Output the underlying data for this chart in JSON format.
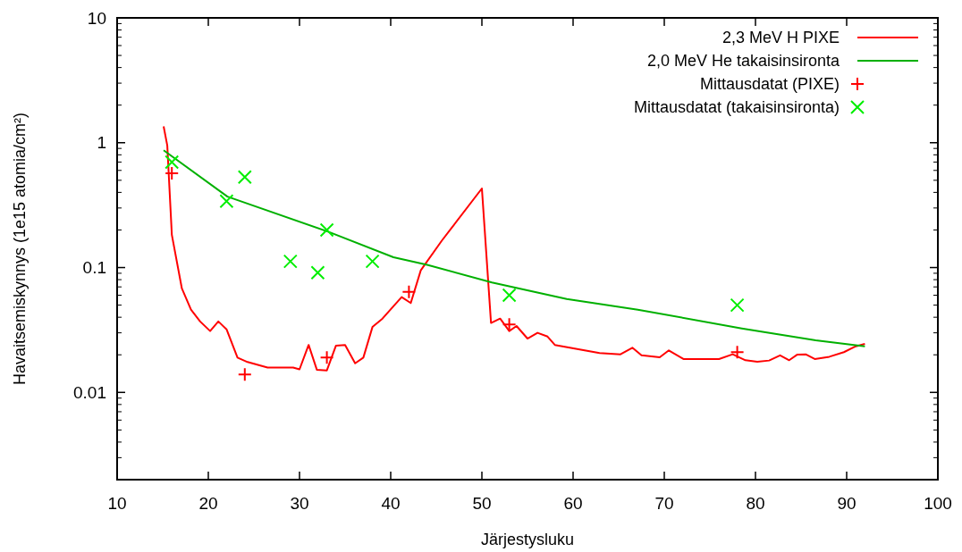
{
  "chart_data": {
    "type": "line",
    "xlabel": "Järjestysluku",
    "ylabel": "Havaitsemiskynnys (1e15 atomia/cm²)",
    "xlim": [
      10,
      100
    ],
    "xticks": [
      10,
      20,
      30,
      40,
      50,
      60,
      70,
      80,
      90,
      100
    ],
    "ylim": [
      0.002,
      10
    ],
    "yticks": [
      0.01,
      0.1,
      1,
      10
    ],
    "log": "y",
    "grid": false,
    "legend": "top right",
    "line_style": "solid",
    "series": [
      {
        "name": "2,3 MeV H PIXE",
        "color": "#ff0000",
        "marker": "none",
        "x": [
          15.1,
          15.5,
          16.0,
          17.1,
          18.1,
          19.1,
          20.2,
          21.1,
          22.0,
          23.2,
          24.3,
          26.5,
          29.3,
          30.0,
          31.0,
          31.9,
          33.0,
          34.0,
          35.0,
          36.1,
          37.0,
          38.0,
          39.1,
          40.3,
          41.2,
          42.2,
          43.3,
          45.6,
          50.0,
          51.0,
          52.0,
          53.0,
          53.8,
          55.0,
          56.1,
          57.2,
          58.0,
          62.9,
          65.2,
          66.5,
          67.5,
          69.5,
          70.5,
          72.1,
          76.0,
          77.5,
          78.9,
          80.2,
          81.5,
          82.7,
          83.7,
          84.6,
          85.5,
          86.5,
          88.1,
          89.7,
          91.0,
          92.0
        ],
        "values": [
          1.35,
          0.95,
          0.183,
          0.068,
          0.046,
          0.037,
          0.031,
          0.037,
          0.032,
          0.019,
          0.0175,
          0.0158,
          0.0158,
          0.0153,
          0.024,
          0.0152,
          0.015,
          0.0237,
          0.024,
          0.0171,
          0.019,
          0.0334,
          0.039,
          0.049,
          0.058,
          0.052,
          0.095,
          0.164,
          0.43,
          0.036,
          0.039,
          0.031,
          0.034,
          0.027,
          0.03,
          0.028,
          0.024,
          0.0207,
          0.0202,
          0.0228,
          0.0198,
          0.0191,
          0.0217,
          0.0185,
          0.0185,
          0.0202,
          0.0181,
          0.0176,
          0.018,
          0.0198,
          0.0181,
          0.0201,
          0.0202,
          0.0185,
          0.0193,
          0.021,
          0.0234,
          0.0245
        ]
      },
      {
        "name": "2,0 MeV He takaisinsironta",
        "color": "#00b000",
        "marker": "none",
        "x": [
          15.1,
          22.1,
          33.2,
          40.3,
          44.0,
          51.1,
          59.3,
          67.1,
          78.5,
          86.6,
          92.0
        ],
        "values": [
          0.87,
          0.37,
          0.193,
          0.121,
          0.105,
          0.076,
          0.056,
          0.046,
          0.0325,
          0.0261,
          0.0234
        ]
      },
      {
        "name": "Mittausdatat (PIXE)",
        "type": "scatter",
        "color": "#ff0000",
        "marker": "cross",
        "x": [
          16,
          24,
          33,
          42,
          53,
          78
        ],
        "values": [
          0.57,
          0.0139,
          0.019,
          0.064,
          0.035,
          0.021
        ]
      },
      {
        "name": "Mittausdatat (takaisinsironta)",
        "type": "scatter",
        "color": "#00ee00",
        "marker": "x",
        "x": [
          16,
          22,
          24,
          29,
          32,
          33,
          38,
          53,
          78
        ],
        "values": [
          0.7,
          0.34,
          0.53,
          0.112,
          0.091,
          0.2,
          0.112,
          0.06,
          0.05
        ]
      }
    ]
  }
}
